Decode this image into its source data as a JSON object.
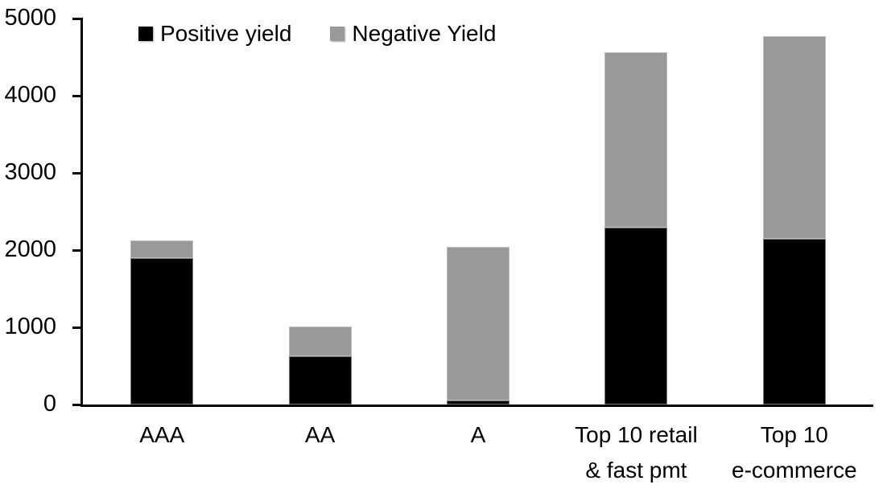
{
  "chart_data": {
    "type": "bar",
    "stacked": true,
    "categories": [
      "AAA",
      "AA",
      "A",
      "Top 10 retail & fast pmt",
      "Top 10 e-commerce"
    ],
    "category_lines": [
      [
        "AAA"
      ],
      [
        "AA"
      ],
      [
        "A"
      ],
      [
        "Top 10 retail",
        "& fast pmt"
      ],
      [
        "Top 10",
        "e-commerce"
      ]
    ],
    "series": [
      {
        "name": "Positive yield",
        "color": "#000000",
        "values": [
          1900,
          630,
          50,
          2290,
          2150
        ]
      },
      {
        "name": "Negative Yield",
        "color": "#999999",
        "values": [
          230,
          380,
          1990,
          2270,
          2620
        ]
      }
    ],
    "ylim": [
      0,
      5000
    ],
    "yticks": [
      0,
      1000,
      2000,
      3000,
      4000,
      5000
    ],
    "grid": false,
    "legend_position": "top-inside",
    "axis_color": "#000000",
    "background_color": "#ffffff"
  }
}
